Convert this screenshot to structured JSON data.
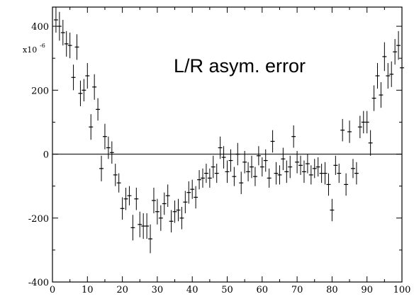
{
  "chart_data": {
    "type": "scatter",
    "title": "",
    "annotation": "L/R asym. error",
    "y_scale_label": "x10",
    "y_scale_exponent": "-6",
    "xlabel": "",
    "ylabel": "",
    "xlim": [
      0,
      100
    ],
    "ylim": [
      -400,
      460
    ],
    "x_ticks": [
      "0",
      "10",
      "20",
      "30",
      "40",
      "50",
      "60",
      "70",
      "80",
      "90",
      "100"
    ],
    "y_ticks": [
      "-400",
      "-200",
      "0",
      "200",
      "400"
    ],
    "reference_line_y": 0,
    "grid": false,
    "error_bar_half_width_x": 0.6,
    "colors": {
      "points": "#000000",
      "axis": "#000000",
      "reference_line": "#333333"
    },
    "points": [
      {
        "x": 1,
        "y": 420,
        "err": 40
      },
      {
        "x": 2,
        "y": 400,
        "err": 45
      },
      {
        "x": 3,
        "y": 380,
        "err": 40
      },
      {
        "x": 4,
        "y": 345,
        "err": 40
      },
      {
        "x": 5,
        "y": 340,
        "err": 40
      },
      {
        "x": 6,
        "y": 240,
        "err": 40
      },
      {
        "x": 7,
        "y": 335,
        "err": 40
      },
      {
        "x": 8,
        "y": 190,
        "err": 40
      },
      {
        "x": 9,
        "y": 200,
        "err": 35
      },
      {
        "x": 10,
        "y": 245,
        "err": 40
      },
      {
        "x": 11,
        "y": 85,
        "err": 40
      },
      {
        "x": 12,
        "y": 210,
        "err": 40
      },
      {
        "x": 13,
        "y": 140,
        "err": 35
      },
      {
        "x": 14,
        "y": -45,
        "err": 40
      },
      {
        "x": 15,
        "y": 55,
        "err": 40
      },
      {
        "x": 16,
        "y": 20,
        "err": 35
      },
      {
        "x": 17,
        "y": 5,
        "err": 35
      },
      {
        "x": 18,
        "y": -65,
        "err": 35
      },
      {
        "x": 19,
        "y": -90,
        "err": 30
      },
      {
        "x": 20,
        "y": -170,
        "err": 35
      },
      {
        "x": 21,
        "y": -140,
        "err": 35
      },
      {
        "x": 22,
        "y": -130,
        "err": 30
      },
      {
        "x": 23,
        "y": -230,
        "err": 40
      },
      {
        "x": 24,
        "y": -140,
        "err": 35
      },
      {
        "x": 25,
        "y": -220,
        "err": 40
      },
      {
        "x": 26,
        "y": -225,
        "err": 40
      },
      {
        "x": 27,
        "y": -225,
        "err": 40
      },
      {
        "x": 28,
        "y": -265,
        "err": 45
      },
      {
        "x": 29,
        "y": -145,
        "err": 40
      },
      {
        "x": 30,
        "y": -180,
        "err": 40
      },
      {
        "x": 31,
        "y": -200,
        "err": 40
      },
      {
        "x": 32,
        "y": -155,
        "err": 35
      },
      {
        "x": 33,
        "y": -130,
        "err": 35
      },
      {
        "x": 34,
        "y": -210,
        "err": 35
      },
      {
        "x": 35,
        "y": -180,
        "err": 35
      },
      {
        "x": 36,
        "y": -175,
        "err": 35
      },
      {
        "x": 37,
        "y": -200,
        "err": 35
      },
      {
        "x": 38,
        "y": -150,
        "err": 35
      },
      {
        "x": 39,
        "y": -120,
        "err": 35
      },
      {
        "x": 40,
        "y": -110,
        "err": 30
      },
      {
        "x": 41,
        "y": -135,
        "err": 35
      },
      {
        "x": 42,
        "y": -80,
        "err": 30
      },
      {
        "x": 43,
        "y": -75,
        "err": 30
      },
      {
        "x": 44,
        "y": -60,
        "err": 30
      },
      {
        "x": 45,
        "y": -75,
        "err": 30
      },
      {
        "x": 46,
        "y": -40,
        "err": 35
      },
      {
        "x": 47,
        "y": -60,
        "err": 30
      },
      {
        "x": 48,
        "y": 20,
        "err": 35
      },
      {
        "x": 49,
        "y": -10,
        "err": 35
      },
      {
        "x": 50,
        "y": -55,
        "err": 35
      },
      {
        "x": 51,
        "y": -20,
        "err": 35
      },
      {
        "x": 52,
        "y": -70,
        "err": 30
      },
      {
        "x": 53,
        "y": 0,
        "err": 35
      },
      {
        "x": 54,
        "y": -90,
        "err": 35
      },
      {
        "x": 55,
        "y": -25,
        "err": 35
      },
      {
        "x": 56,
        "y": -55,
        "err": 30
      },
      {
        "x": 57,
        "y": -40,
        "err": 35
      },
      {
        "x": 58,
        "y": -70,
        "err": 30
      },
      {
        "x": 59,
        "y": -5,
        "err": 30
      },
      {
        "x": 60,
        "y": -40,
        "err": 30
      },
      {
        "x": 61,
        "y": -20,
        "err": 35
      },
      {
        "x": 62,
        "y": -75,
        "err": 30
      },
      {
        "x": 63,
        "y": 40,
        "err": 35
      },
      {
        "x": 64,
        "y": -60,
        "err": 35
      },
      {
        "x": 65,
        "y": -65,
        "err": 30
      },
      {
        "x": 66,
        "y": -15,
        "err": 35
      },
      {
        "x": 67,
        "y": -55,
        "err": 35
      },
      {
        "x": 68,
        "y": -40,
        "err": 35
      },
      {
        "x": 69,
        "y": 55,
        "err": 35
      },
      {
        "x": 70,
        "y": -25,
        "err": 35
      },
      {
        "x": 71,
        "y": -35,
        "err": 30
      },
      {
        "x": 72,
        "y": -55,
        "err": 35
      },
      {
        "x": 73,
        "y": -30,
        "err": 30
      },
      {
        "x": 74,
        "y": -65,
        "err": 30
      },
      {
        "x": 75,
        "y": -45,
        "err": 30
      },
      {
        "x": 76,
        "y": -40,
        "err": 30
      },
      {
        "x": 77,
        "y": -60,
        "err": 30
      },
      {
        "x": 78,
        "y": -60,
        "err": 35
      },
      {
        "x": 79,
        "y": -95,
        "err": 35
      },
      {
        "x": 80,
        "y": -175,
        "err": 35
      },
      {
        "x": 81,
        "y": -35,
        "err": 30
      },
      {
        "x": 82,
        "y": -60,
        "err": 30
      },
      {
        "x": 83,
        "y": 75,
        "err": 35
      },
      {
        "x": 84,
        "y": -95,
        "err": 35
      },
      {
        "x": 85,
        "y": 70,
        "err": 35
      },
      {
        "x": 86,
        "y": -45,
        "err": 30
      },
      {
        "x": 87,
        "y": -60,
        "err": 35
      },
      {
        "x": 88,
        "y": 85,
        "err": 35
      },
      {
        "x": 89,
        "y": 100,
        "err": 35
      },
      {
        "x": 90,
        "y": 100,
        "err": 35
      },
      {
        "x": 91,
        "y": 35,
        "err": 40
      },
      {
        "x": 92,
        "y": 175,
        "err": 40
      },
      {
        "x": 93,
        "y": 245,
        "err": 40
      },
      {
        "x": 94,
        "y": 185,
        "err": 40
      },
      {
        "x": 95,
        "y": 305,
        "err": 45
      },
      {
        "x": 96,
        "y": 245,
        "err": 40
      },
      {
        "x": 97,
        "y": 250,
        "err": 40
      },
      {
        "x": 98,
        "y": 320,
        "err": 40
      },
      {
        "x": 99,
        "y": 340,
        "err": 45
      },
      {
        "x": 100,
        "y": 270,
        "err": 45
      }
    ]
  }
}
